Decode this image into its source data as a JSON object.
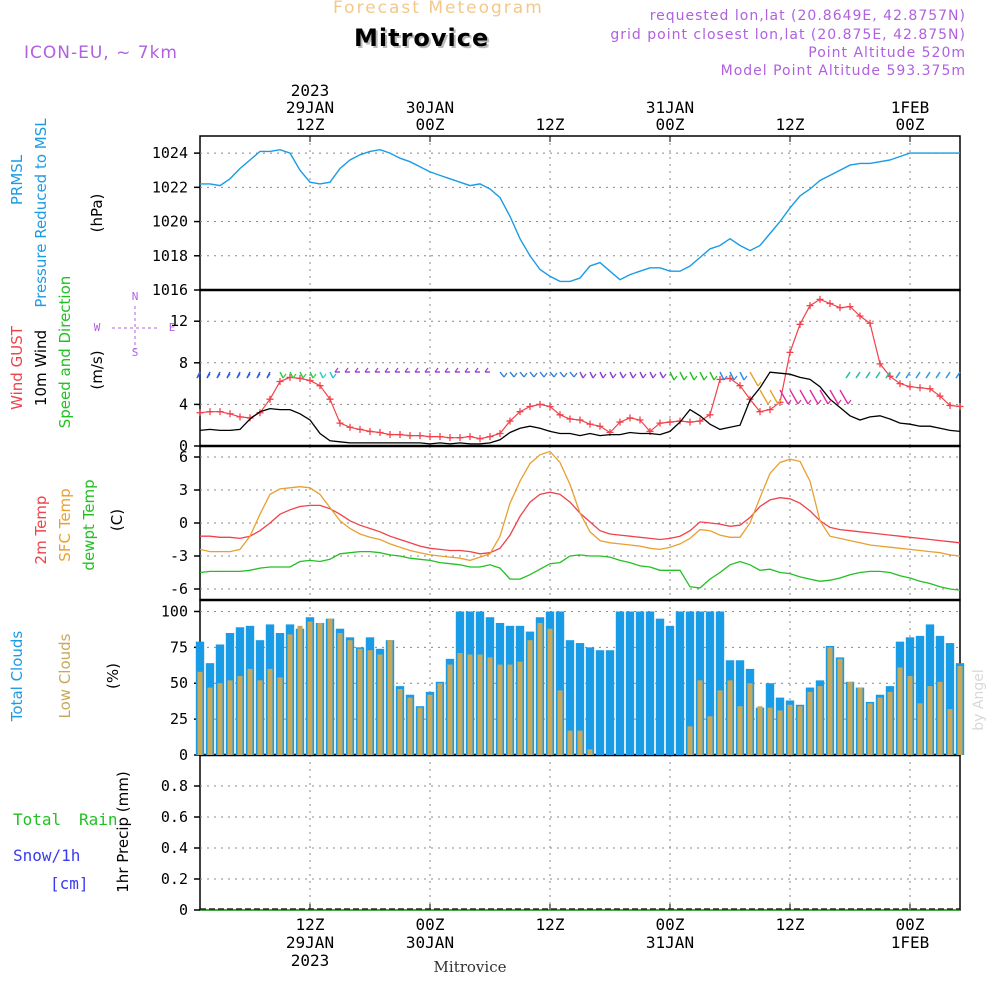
{
  "header": {
    "product": "Forecast Meteogram",
    "station": "Mitrovice",
    "model": "ICON-EU, ~ 7km",
    "requested": "requested lon,lat (20.8649E, 42.8757N)",
    "gridpoint": "grid point closest lon,lat (20.875E, 42.875N)",
    "point_altitude": "Point Altitude 520m",
    "model_altitude": "Model Point Altitude 593.375m",
    "footer_station": "Mitrovice",
    "watermark": "by Angel"
  },
  "colors": {
    "pressure": "#1a9be6",
    "gust": "#f0424a",
    "wind": "#000000",
    "temp2m": "#f0424a",
    "sfc": "#e8a030",
    "dewpt": "#22c022",
    "total_cloud": "#1a9be6",
    "low_cloud": "#c9a85a",
    "snow": "#3a3af0",
    "rain": "#22c022",
    "purple": "#b060e0"
  },
  "chart_data": [
    {
      "type": "line",
      "title": "PRMSL Pressure Reduced to MSL",
      "ylabel": "(hPa)",
      "ylim": [
        1016,
        1025
      ],
      "yticks": [
        1016,
        1018,
        1020,
        1022,
        1024
      ],
      "x_hours": [
        0,
        1,
        2,
        3,
        4,
        5,
        6,
        7,
        8,
        9,
        10,
        11,
        12,
        13,
        14,
        15,
        16,
        17,
        18,
        19,
        20,
        21,
        22,
        23,
        24,
        25,
        26,
        27,
        28,
        29,
        30,
        31,
        32,
        33,
        34,
        35,
        36,
        37,
        38,
        39,
        40,
        41,
        42,
        43,
        44,
        45,
        46,
        47,
        48,
        49,
        50,
        51,
        52,
        53,
        54,
        55,
        56,
        57,
        58,
        59,
        60,
        61,
        62,
        63,
        64,
        65,
        66,
        67,
        68,
        69,
        70,
        71,
        72,
        73,
        74,
        75,
        76
      ],
      "series": [
        {
          "name": "PRMSL",
          "values": [
            1022.2,
            1022.2,
            1022.1,
            1022.5,
            1023.1,
            1023.6,
            1024.1,
            1024.1,
            1024.2,
            1024.0,
            1023.0,
            1022.3,
            1022.2,
            1022.3,
            1023.1,
            1023.6,
            1023.9,
            1024.1,
            1024.2,
            1024.0,
            1023.7,
            1023.5,
            1023.2,
            1022.9,
            1022.7,
            1022.5,
            1022.3,
            1022.1,
            1022.2,
            1021.9,
            1021.4,
            1020.3,
            1019.0,
            1018.0,
            1017.2,
            1016.8,
            1016.5,
            1016.5,
            1016.7,
            1017.4,
            1017.6,
            1017.1,
            1016.6,
            1016.9,
            1017.1,
            1017.3,
            1017.3,
            1017.1,
            1017.1,
            1017.4,
            1017.9,
            1018.4,
            1018.6,
            1019.0,
            1018.6,
            1018.3,
            1018.6,
            1019.3,
            1020.0,
            1020.8,
            1021.5,
            1021.9,
            1022.4,
            1022.7,
            1023.0,
            1023.3,
            1023.4,
            1023.4,
            1023.5,
            1023.6,
            1023.8,
            1024.0,
            1024.0,
            1024.0,
            1024.0,
            1024.0,
            1024.0
          ]
        }
      ]
    },
    {
      "type": "line",
      "title": "Wind GUST / 10m Wind Speed and Direction",
      "ylabel": "(m/s)",
      "ylim": [
        0,
        15
      ],
      "yticks": [
        0,
        4,
        8,
        12
      ],
      "compass": {
        "n": "N",
        "s": "S",
        "w": "W",
        "e": "E"
      },
      "series": [
        {
          "name": "Wind GUST",
          "values": [
            3.2,
            3.3,
            3.3,
            3.1,
            2.8,
            2.7,
            3.2,
            4.5,
            6.2,
            6.6,
            6.5,
            6.3,
            5.8,
            4.5,
            2.2,
            1.8,
            1.6,
            1.4,
            1.3,
            1.1,
            1.1,
            1.0,
            1.0,
            0.9,
            0.9,
            0.8,
            0.8,
            0.9,
            0.7,
            0.9,
            1.2,
            2.4,
            3.3,
            3.8,
            4.0,
            3.8,
            3.0,
            2.6,
            2.5,
            2.1,
            1.9,
            1.3,
            2.3,
            2.7,
            2.5,
            1.4,
            2.2,
            2.3,
            2.4,
            2.3,
            2.4,
            3.0,
            6.4,
            6.5,
            5.8,
            4.5,
            3.3,
            3.5,
            4.2,
            9.0,
            11.7,
            13.5,
            14.1,
            13.7,
            13.3,
            13.4,
            12.5,
            11.8,
            7.9,
            6.7,
            6.0,
            5.7,
            5.6,
            5.5,
            4.8,
            3.9,
            3.8
          ]
        },
        {
          "name": "10m Wind",
          "values": [
            1.5,
            1.6,
            1.5,
            1.5,
            1.6,
            2.6,
            3.3,
            3.6,
            3.5,
            3.5,
            3.1,
            2.5,
            1.2,
            0.5,
            0.4,
            0.3,
            0.3,
            0.3,
            0.3,
            0.3,
            0.3,
            0.3,
            0.3,
            0.2,
            0.3,
            0.2,
            0.3,
            0.2,
            0.2,
            0.3,
            0.6,
            1.3,
            1.7,
            1.9,
            1.7,
            1.4,
            1.2,
            1.2,
            1.0,
            1.2,
            1.0,
            1.1,
            1.1,
            1.3,
            1.2,
            1.2,
            1.1,
            1.4,
            2.3,
            3.5,
            2.9,
            2.1,
            1.6,
            1.8,
            2.0,
            4.4,
            5.6,
            7.1,
            7.0,
            6.9,
            6.6,
            6.4,
            5.7,
            4.5,
            3.7,
            2.9,
            2.5,
            2.8,
            2.9,
            2.6,
            2.2,
            2.1,
            1.9,
            1.9,
            1.7,
            1.5,
            1.4
          ]
        }
      ]
    },
    {
      "type": "line",
      "title": "2m Temp / SFC Temp / dewpt Temp",
      "ylabel": "(C)",
      "ylim": [
        -7,
        7
      ],
      "yticks": [
        -6,
        -3,
        0,
        3,
        6
      ],
      "series": [
        {
          "name": "2m Temp",
          "values": [
            -1.2,
            -1.2,
            -1.3,
            -1.3,
            -1.4,
            -1.2,
            -0.7,
            0.0,
            0.8,
            1.2,
            1.5,
            1.6,
            1.6,
            1.3,
            0.8,
            0.2,
            -0.2,
            -0.5,
            -0.8,
            -1.2,
            -1.5,
            -1.8,
            -2.1,
            -2.3,
            -2.4,
            -2.5,
            -2.5,
            -2.6,
            -2.8,
            -2.7,
            -2.3,
            -1.1,
            0.6,
            1.9,
            2.6,
            2.8,
            2.6,
            1.9,
            0.9,
            0.1,
            -0.7,
            -1.0,
            -1.1,
            -1.2,
            -1.3,
            -1.4,
            -1.5,
            -1.4,
            -1.2,
            -0.7,
            0.1,
            0.0,
            -0.1,
            -0.3,
            -0.2,
            0.5,
            1.5,
            2.1,
            2.3,
            2.2,
            1.8,
            1.1,
            0.2,
            -0.4,
            -0.6,
            -0.7,
            -0.8,
            -0.9,
            -1.0,
            -1.1,
            -1.2,
            -1.3,
            -1.4,
            -1.5,
            -1.6,
            -1.7,
            -1.8
          ]
        },
        {
          "name": "SFC Temp",
          "values": [
            -2.4,
            -2.6,
            -2.6,
            -2.6,
            -2.4,
            -1.2,
            0.8,
            2.6,
            3.1,
            3.2,
            3.3,
            3.2,
            2.6,
            1.4,
            0.2,
            -0.5,
            -1.0,
            -1.3,
            -1.5,
            -1.9,
            -2.2,
            -2.5,
            -2.7,
            -2.9,
            -3.0,
            -3.1,
            -3.2,
            -3.4,
            -3.1,
            -2.8,
            -1.2,
            1.8,
            3.8,
            5.4,
            6.2,
            6.5,
            5.5,
            3.5,
            0.9,
            -0.8,
            -1.6,
            -1.8,
            -1.9,
            -2.0,
            -2.1,
            -2.3,
            -2.4,
            -2.2,
            -1.9,
            -1.4,
            -0.6,
            -0.7,
            -1.1,
            -1.3,
            -1.3,
            0.0,
            2.3,
            4.5,
            5.5,
            5.8,
            5.6,
            3.8,
            0.2,
            -1.2,
            -1.4,
            -1.6,
            -1.8,
            -2.0,
            -2.1,
            -2.2,
            -2.3,
            -2.4,
            -2.5,
            -2.6,
            -2.7,
            -2.9,
            -3.0
          ]
        },
        {
          "name": "dewpt Temp",
          "values": [
            -4.5,
            -4.4,
            -4.4,
            -4.4,
            -4.4,
            -4.3,
            -4.1,
            -4.0,
            -4.0,
            -4.0,
            -3.5,
            -3.4,
            -3.5,
            -3.3,
            -2.8,
            -2.7,
            -2.6,
            -2.6,
            -2.7,
            -2.9,
            -3.0,
            -3.2,
            -3.3,
            -3.4,
            -3.6,
            -3.7,
            -3.8,
            -4.0,
            -4.0,
            -3.8,
            -4.1,
            -5.1,
            -5.1,
            -4.7,
            -4.2,
            -3.7,
            -3.6,
            -3.0,
            -2.9,
            -3.0,
            -3.0,
            -3.1,
            -3.4,
            -3.6,
            -3.9,
            -4.0,
            -4.3,
            -4.3,
            -4.3,
            -5.8,
            -5.9,
            -5.1,
            -4.5,
            -3.8,
            -3.5,
            -3.8,
            -4.3,
            -4.2,
            -4.5,
            -4.6,
            -4.9,
            -5.1,
            -5.3,
            -5.2,
            -5.0,
            -4.7,
            -4.5,
            -4.4,
            -4.4,
            -4.5,
            -4.8,
            -5.0,
            -5.3,
            -5.5,
            -5.8,
            -6.0,
            -6.1
          ]
        }
      ]
    },
    {
      "type": "bar",
      "title": "Total Clouds / Low Clouds",
      "ylabel": "(%)",
      "ylim": [
        0,
        108
      ],
      "yticks": [
        0,
        25,
        50,
        75,
        100
      ],
      "series": [
        {
          "name": "Total Clouds",
          "values": [
            79,
            64,
            77,
            85,
            89,
            90,
            80,
            91,
            85,
            91,
            88,
            96,
            92,
            95,
            88,
            82,
            75,
            82,
            74,
            80,
            48,
            42,
            34,
            44,
            51,
            67,
            100,
            100,
            100,
            96,
            92,
            90,
            90,
            86,
            96,
            100,
            100,
            80,
            78,
            75,
            73,
            73,
            100,
            100,
            100,
            100,
            95,
            90,
            100,
            100,
            100,
            100,
            100,
            66,
            66,
            60,
            33,
            50,
            40,
            38,
            35,
            47,
            52,
            76,
            68,
            51,
            47,
            37,
            42,
            48,
            79,
            82,
            83,
            91,
            83,
            78,
            64
          ]
        },
        {
          "name": "Low Clouds",
          "values": [
            58,
            47,
            50,
            52,
            55,
            60,
            52,
            60,
            54,
            84,
            90,
            93,
            92,
            95,
            85,
            80,
            74,
            73,
            70,
            80,
            46,
            40,
            33,
            42,
            50,
            63,
            71,
            70,
            70,
            68,
            63,
            63,
            65,
            80,
            92,
            88,
            45,
            17,
            17,
            4,
            0,
            0,
            0,
            0,
            0,
            0,
            0,
            0,
            0,
            20,
            52,
            27,
            45,
            52,
            34,
            50,
            34,
            33,
            31,
            35,
            34,
            44,
            48,
            75,
            67,
            51,
            47,
            36,
            40,
            44,
            61,
            55,
            36,
            48,
            51,
            32,
            62
          ]
        }
      ]
    },
    {
      "type": "bar",
      "title": "Total Rain / Snow/1h [cm]",
      "ylabel": "1hr Precip (mm)",
      "ylim": [
        0,
        1.0
      ],
      "yticks": [
        0,
        0.2,
        0.4,
        0.6,
        0.8
      ],
      "series": [
        {
          "name": "Total Rain",
          "values": [
            0,
            0,
            0,
            0,
            0,
            0,
            0,
            0,
            0,
            0,
            0,
            0,
            0,
            0,
            0,
            0,
            0,
            0,
            0,
            0,
            0,
            0,
            0,
            0,
            0,
            0,
            0,
            0,
            0,
            0,
            0,
            0,
            0,
            0,
            0,
            0,
            0,
            0,
            0,
            0,
            0,
            0,
            0,
            0,
            0,
            0,
            0,
            0,
            0,
            0,
            0,
            0,
            0,
            0,
            0,
            0,
            0,
            0,
            0,
            0,
            0,
            0,
            0,
            0,
            0,
            0,
            0,
            0,
            0,
            0,
            0,
            0,
            0,
            0,
            0,
            0,
            0
          ]
        },
        {
          "name": "Snow/1h",
          "values": [
            0,
            0,
            0,
            0,
            0,
            0,
            0,
            0,
            0,
            0,
            0,
            0,
            0,
            0,
            0,
            0,
            0,
            0,
            0,
            0,
            0,
            0,
            0,
            0,
            0,
            0,
            0,
            0,
            0,
            0,
            0,
            0,
            0,
            0,
            0,
            0,
            0,
            0,
            0,
            0,
            0,
            0,
            0,
            0,
            0,
            0,
            0,
            0,
            0,
            0,
            0,
            0,
            0,
            0,
            0,
            0,
            0,
            0,
            0,
            0,
            0,
            0,
            0,
            0,
            0,
            0,
            0,
            0,
            0,
            0,
            0,
            0,
            0,
            0,
            0,
            0,
            0
          ]
        }
      ]
    }
  ],
  "axes": {
    "top_ticks": [
      {
        "hour": 11,
        "lines": [
          "2023",
          "29JAN",
          "12Z"
        ]
      },
      {
        "hour": 23,
        "lines": [
          "30JAN",
          "00Z"
        ]
      },
      {
        "hour": 35,
        "lines": [
          "12Z"
        ]
      },
      {
        "hour": 47,
        "lines": [
          "31JAN",
          "00Z"
        ]
      },
      {
        "hour": 59,
        "lines": [
          "12Z"
        ]
      },
      {
        "hour": 71,
        "lines": [
          "1FEB",
          "00Z"
        ]
      }
    ],
    "bottom_ticks": [
      {
        "hour": 11,
        "lines": [
          "12Z",
          "29JAN",
          "2023"
        ]
      },
      {
        "hour": 23,
        "lines": [
          "00Z",
          "30JAN"
        ]
      },
      {
        "hour": 35,
        "lines": [
          "12Z"
        ]
      },
      {
        "hour": 47,
        "lines": [
          "00Z",
          "31JAN"
        ]
      },
      {
        "hour": 59,
        "lines": [
          "12Z"
        ]
      },
      {
        "hour": 71,
        "lines": [
          "00Z",
          "1FEB"
        ]
      }
    ]
  },
  "panel_labels": {
    "p0": [
      "PRMSL",
      "Pressure Reduced to MSL",
      "(hPa)"
    ],
    "p1": [
      "Wind GUST",
      "10m Wind",
      "Speed and Direction",
      "(m/s)"
    ],
    "p2": [
      "2m Temp",
      "SFC Temp",
      "dewpt Temp",
      "(C)"
    ],
    "p3": [
      "Total Clouds",
      "Low Clouds",
      "(%)"
    ],
    "p4": [
      "Total",
      "Rain",
      "Snow/1h",
      "[cm]",
      "1hr Precip (mm)"
    ]
  }
}
